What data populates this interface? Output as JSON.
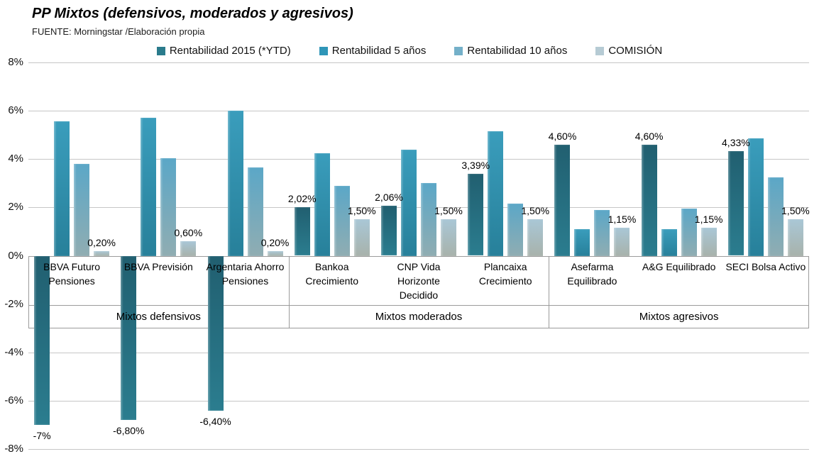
{
  "title": "PP Mixtos (defensivos, moderados y agresivos)",
  "source": "FUENTE: Morningstar /Elaboración propia",
  "chart_data": {
    "type": "bar",
    "title": "PP Mixtos (defensivos, moderados y agresivos)",
    "source": "FUENTE: Morningstar /Elaboración propia",
    "legend_position": "top",
    "grid": true,
    "categories": [
      "BBVA Futuro Pensiones",
      "BBVA Previsión",
      "Argentaria Ahorro Pensiones",
      "Bankoa Crecimiento",
      "CNP Vida Horizonte Decidido",
      "Plancaixa Crecimiento",
      "Asefarma Equilibrado",
      "A&G Equilibrado",
      "SECI Bolsa Activo"
    ],
    "groups": [
      {
        "label": "Mixtos defensivos",
        "span": 3
      },
      {
        "label": "Mixtos moderados",
        "span": 3
      },
      {
        "label": "Mixtos agresivos",
        "span": 3
      }
    ],
    "series": [
      {
        "name": "Rentabilidad 2015 (*YTD)",
        "swatch": "#2A7B8C",
        "gradient": [
          "#215F70",
          "#2B7D8F"
        ],
        "values": [
          -7,
          -6.8,
          -6.4,
          2.02,
          2.06,
          3.39,
          4.6,
          4.6,
          4.33
        ],
        "data_labels": [
          "-7%",
          "-6,80%",
          "-6,40%",
          "2,02%",
          "2,06%",
          "3,39%",
          "4,60%",
          "4,60%",
          "4,33%"
        ]
      },
      {
        "name": "Rentabilidad 5 años",
        "swatch": "#2F96B8",
        "gradient": [
          "#3A9DBC",
          "#27809A"
        ],
        "values": [
          5.55,
          5.7,
          6.0,
          4.25,
          4.4,
          5.15,
          1.1,
          1.1,
          4.85
        ],
        "data_labels": null
      },
      {
        "name": "Rentabilidad 10 años",
        "swatch": "#74B0C9",
        "gradient": [
          "#5BA7C7",
          "#90ADB2"
        ],
        "values": [
          3.8,
          4.05,
          3.65,
          2.9,
          3.0,
          2.15,
          1.9,
          1.95,
          3.25
        ],
        "data_labels": null
      },
      {
        "name": "COMISIÓN",
        "swatch": "#B6CBD4",
        "gradient": [
          "#A9C7D6",
          "#A8B2AB"
        ],
        "values": [
          0.2,
          0.6,
          0.2,
          1.5,
          1.5,
          1.5,
          1.15,
          1.15,
          1.5
        ],
        "data_labels": [
          "0,20%",
          "0,60%",
          "0,20%",
          "1,50%",
          "1,50%",
          "1,50%",
          "1,15%",
          "1,15%",
          "1,50%"
        ]
      }
    ],
    "y_axis": {
      "min": -8,
      "max": 8,
      "step": 2,
      "tick_labels": [
        "8%",
        "6%",
        "4%",
        "2%",
        "0%",
        "-2%",
        "-4%",
        "-6%",
        "-8%"
      ]
    }
  }
}
